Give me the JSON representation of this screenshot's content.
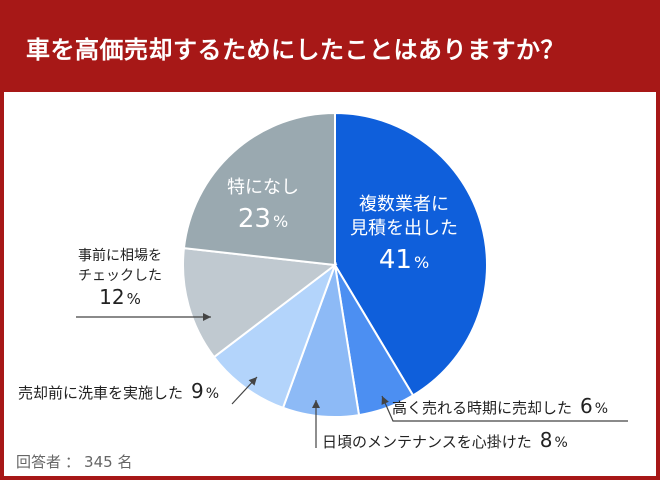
{
  "header": {
    "title": "車を高価売却するためにしたことはありますか？"
  },
  "footer": {
    "respondents_label": "回答者",
    "respondents_count": "345",
    "respondents_unit": "名"
  },
  "colors": {
    "header_bg": "#a71817",
    "border": "#a71817"
  },
  "chart_data": {
    "type": "pie",
    "unit": "%",
    "start": "12 o'clock, clockwise",
    "slices": [
      {
        "label": "複数業者に見積を出した",
        "lines": [
          "複数業者に",
          "見積を出した"
        ],
        "value": 41,
        "color": "#0f5fdb"
      },
      {
        "label": "高く売れる時期に売却した",
        "lines": [
          "高く売れる時期に売却した"
        ],
        "value": 6,
        "color": "#4c8ff2"
      },
      {
        "label": "日頃のメンテナンスを心掛けた",
        "lines": [
          "日頃のメンテナンスを心掛けた"
        ],
        "value": 8,
        "color": "#8dbaf6"
      },
      {
        "label": "売却前に洗車を実施した",
        "lines": [
          "売却前に洗車を実施した"
        ],
        "value": 9,
        "color": "#b3d4fb"
      },
      {
        "label": "事前に相場をチェックした",
        "lines": [
          "事前に相場を",
          "チェックした"
        ],
        "value": 12,
        "color": "#c0c9d0"
      },
      {
        "label": "特になし",
        "lines": [
          "特になし"
        ],
        "value": 23,
        "color": "#9aa9b0"
      }
    ]
  }
}
